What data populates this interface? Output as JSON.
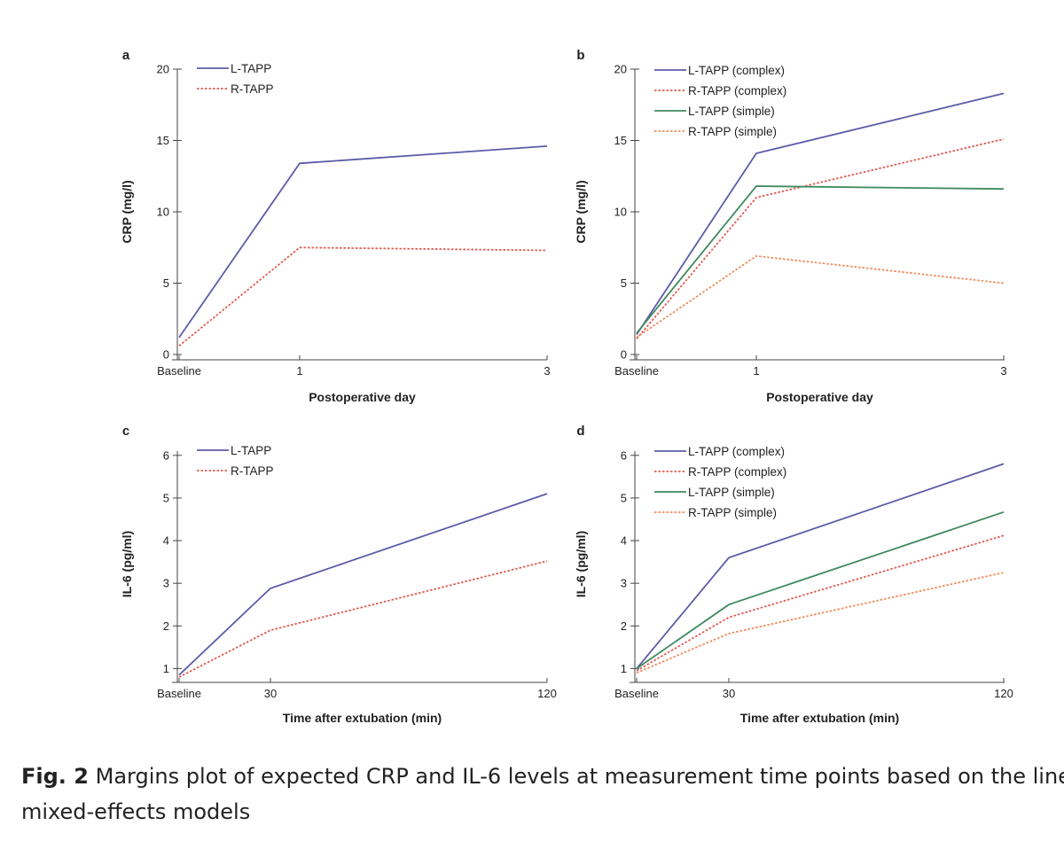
{
  "figure": {
    "caption_label": "Fig. 2",
    "caption_text": "Margins plot of expected CRP and IL-6 levels at measurement time points based on the linear mixed-effects models"
  },
  "colors": {
    "l_tapp": "#5b5ba8",
    "r_tapp": "#e05a4e",
    "l_tapp_simple": "#3f8a5f",
    "r_tapp_simple": "#f08a5a"
  },
  "chart_data": [
    {
      "panel": "a",
      "type": "line",
      "categories": [
        "Baseline",
        "1",
        "3"
      ],
      "xlabel": "Postoperative day",
      "ylabel": "CRP (mg/l)",
      "ylim": [
        0,
        20
      ],
      "yticks": [
        0,
        5,
        10,
        15,
        20
      ],
      "legend_position": "top-left",
      "series": [
        {
          "name": "L-TAPP",
          "values": [
            1.2,
            13.4,
            14.6
          ],
          "color": "#5b5ba8",
          "style": "solid"
        },
        {
          "name": "R-TAPP",
          "values": [
            0.6,
            7.5,
            7.3
          ],
          "color": "#e05a4e",
          "style": "dotted"
        }
      ]
    },
    {
      "panel": "b",
      "type": "line",
      "categories": [
        "Baseline",
        "1",
        "3"
      ],
      "xlabel": "Postoperative day",
      "ylabel": "CRP (mg/l)",
      "ylim": [
        0,
        20
      ],
      "yticks": [
        0,
        5,
        10,
        15,
        20
      ],
      "legend_position": "top-left",
      "series": [
        {
          "name": "L-TAPP (complex)",
          "values": [
            1.4,
            14.1,
            18.3
          ],
          "color": "#5b5ba8",
          "style": "solid"
        },
        {
          "name": "R-TAPP (complex)",
          "values": [
            1.1,
            11.0,
            15.1
          ],
          "color": "#e05a4e",
          "style": "dotted"
        },
        {
          "name": "L-TAPP (simple)",
          "values": [
            1.5,
            11.8,
            11.6
          ],
          "color": "#3f8a5f",
          "style": "solid"
        },
        {
          "name": "R-TAPP (simple)",
          "values": [
            1.2,
            6.9,
            5.0
          ],
          "color": "#f08a5a",
          "style": "dotted"
        }
      ]
    },
    {
      "panel": "c",
      "type": "line",
      "categories": [
        "Baseline",
        "30",
        "120"
      ],
      "xlabel": "Time after extubation (min)",
      "ylabel": "IL-6 (pg/ml)",
      "ylim": [
        0.8,
        6.1
      ],
      "yticks": [
        1,
        2,
        3,
        4,
        5,
        6
      ],
      "legend_position": "top-left",
      "series": [
        {
          "name": "L-TAPP",
          "values": [
            0.85,
            2.88,
            5.1
          ],
          "color": "#5b5ba8",
          "style": "solid"
        },
        {
          "name": "R-TAPP",
          "values": [
            0.8,
            1.9,
            3.52
          ],
          "color": "#e05a4e",
          "style": "dotted"
        }
      ]
    },
    {
      "panel": "d",
      "type": "line",
      "categories": [
        "Baseline",
        "30",
        "120"
      ],
      "xlabel": "Time after extubation (min)",
      "ylabel": "IL-6 (pg/ml)",
      "ylim": [
        0.8,
        6.1
      ],
      "yticks": [
        1,
        2,
        3,
        4,
        5,
        6
      ],
      "legend_position": "top-left",
      "series": [
        {
          "name": "L-TAPP (complex)",
          "values": [
            1.0,
            3.6,
            5.8
          ],
          "color": "#5b5ba8",
          "style": "solid"
        },
        {
          "name": "R-TAPP (complex)",
          "values": [
            0.95,
            2.2,
            4.12
          ],
          "color": "#e05a4e",
          "style": "dotted"
        },
        {
          "name": "L-TAPP (simple)",
          "values": [
            1.0,
            2.5,
            4.67
          ],
          "color": "#3f8a5f",
          "style": "solid"
        },
        {
          "name": "R-TAPP (simple)",
          "values": [
            0.9,
            1.82,
            3.25
          ],
          "color": "#f08a5a",
          "style": "dotted"
        }
      ]
    }
  ]
}
